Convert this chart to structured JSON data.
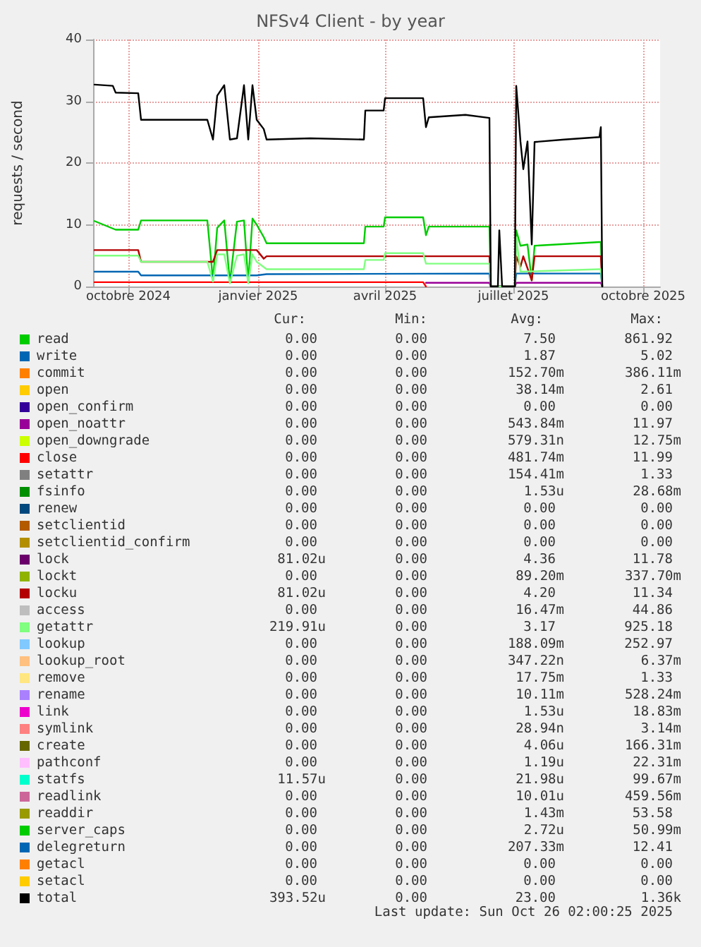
{
  "chart_data": {
    "type": "line",
    "title": "NFSv4 Client - by year",
    "ylabel": "requests / second",
    "xlim": [
      "2024-09-06",
      "2025-10-13"
    ],
    "xticks": [
      {
        "value": "2024-10-01",
        "label": "octobre 2024"
      },
      {
        "value": "2025-01-01",
        "label": "janvier 2025"
      },
      {
        "value": "2025-04-01",
        "label": "avril 2025"
      },
      {
        "value": "2025-07-01",
        "label": "juillet 2025"
      },
      {
        "value": "2025-10-01",
        "label": "octobre 2025"
      }
    ],
    "ylim": [
      0,
      40
    ],
    "yticks": [
      0,
      10,
      20,
      30,
      40
    ],
    "grid": true,
    "legend": "bottom",
    "marker": "none",
    "line_style": "solid",
    "series": [
      {
        "name": "read",
        "color": "#00cc00",
        "x": [
          "2024-09-07",
          "2024-09-22",
          "2024-10-08",
          "2024-10-10",
          "2024-11-26",
          "2024-11-30",
          "2024-12-03",
          "2024-12-08",
          "2024-12-12",
          "2024-12-17",
          "2024-12-22",
          "2024-12-25",
          "2024-12-28",
          "2024-12-31",
          "2025-01-05",
          "2025-01-07",
          "2025-03-17",
          "2025-03-18",
          "2025-03-31",
          "2025-04-01",
          "2025-04-28",
          "2025-04-30",
          "2025-05-02",
          "2025-06-14",
          "2025-06-15",
          "2025-07-02",
          "2025-07-03",
          "2025-07-06",
          "2025-07-11",
          "2025-07-14",
          "2025-07-16",
          "2025-08-31",
          "2025-09-01",
          "2025-09-02"
        ],
        "values": [
          10.6,
          9.2,
          9.2,
          10.7,
          10.7,
          1.0,
          9.5,
          10.7,
          0.7,
          10.5,
          10.7,
          0.7,
          11.0,
          10.0,
          8.0,
          7.0,
          7.0,
          9.7,
          9.7,
          11.2,
          11.2,
          8.3,
          9.7,
          9.7,
          0,
          0,
          9.1,
          6.6,
          6.8,
          1.0,
          6.6,
          7.2,
          7.2,
          0
        ]
      },
      {
        "name": "write",
        "color": "#0066b3",
        "x": [
          "2024-09-07",
          "2024-10-08",
          "2024-10-10",
          "2024-12-31",
          "2025-01-07",
          "2025-06-14",
          "2025-06-15",
          "2025-07-02",
          "2025-07-03",
          "2025-09-01",
          "2025-09-02"
        ],
        "values": [
          2.4,
          2.4,
          1.8,
          1.8,
          2.0,
          2.1,
          0,
          0,
          2.1,
          2.1,
          0
        ]
      },
      {
        "name": "commit",
        "color": "#ff8000"
      },
      {
        "name": "open",
        "color": "#ffcc00"
      },
      {
        "name": "open_confirm",
        "color": "#330099"
      },
      {
        "name": "open_noattr",
        "color": "#990099",
        "x": [
          "2025-04-30",
          "2025-06-14",
          "2025-06-15",
          "2025-07-02",
          "2025-07-03",
          "2025-09-01",
          "2025-09-02"
        ],
        "values": [
          0.6,
          0.6,
          0,
          0,
          0.6,
          0.6,
          0
        ]
      },
      {
        "name": "open_downgrade",
        "color": "#ccff00"
      },
      {
        "name": "close",
        "color": "#ff0000",
        "x": [
          "2024-09-07",
          "2025-04-28",
          "2025-04-30"
        ],
        "values": [
          0.7,
          0.7,
          0
        ]
      },
      {
        "name": "setattr",
        "color": "#808080"
      },
      {
        "name": "fsinfo",
        "color": "#008f00"
      },
      {
        "name": "renew",
        "color": "#00487d"
      },
      {
        "name": "setclientid",
        "color": "#b35a00"
      },
      {
        "name": "setclientid_confirm",
        "color": "#b38f00"
      },
      {
        "name": "lock",
        "color": "#6b006b"
      },
      {
        "name": "lockt",
        "color": "#8fb300"
      },
      {
        "name": "locku",
        "color": "#b30000",
        "x": [
          "2024-09-07",
          "2024-10-08",
          "2024-10-10",
          "2024-11-30",
          "2024-12-03",
          "2024-12-31",
          "2025-01-05",
          "2025-01-07",
          "2025-06-14",
          "2025-06-15",
          "2025-07-02",
          "2025-07-03",
          "2025-07-06",
          "2025-07-08",
          "2025-07-14",
          "2025-07-16",
          "2025-09-01",
          "2025-09-02"
        ],
        "values": [
          5.9,
          5.9,
          4.0,
          4.0,
          5.9,
          5.9,
          4.5,
          4.9,
          4.9,
          0,
          0,
          4.9,
          3.2,
          4.9,
          1.0,
          4.9,
          4.9,
          0
        ]
      },
      {
        "name": "access",
        "color": "#bebebe"
      },
      {
        "name": "getattr",
        "color": "#80ff80",
        "x": [
          "2024-09-07",
          "2024-10-08",
          "2024-10-10",
          "2024-11-26",
          "2024-11-30",
          "2024-12-03",
          "2024-12-08",
          "2024-12-12",
          "2024-12-17",
          "2024-12-22",
          "2024-12-25",
          "2024-12-28",
          "2024-12-31",
          "2025-01-07",
          "2025-03-17",
          "2025-03-18",
          "2025-03-31",
          "2025-04-01",
          "2025-04-28",
          "2025-04-30",
          "2025-06-14",
          "2025-06-15",
          "2025-07-02",
          "2025-07-03",
          "2025-07-06",
          "2025-08-31",
          "2025-09-01",
          "2025-09-02"
        ],
        "values": [
          5.0,
          5.0,
          4.0,
          4.0,
          0.8,
          5.2,
          5.2,
          0.5,
          5.0,
          5.2,
          0.5,
          5.2,
          4.0,
          2.8,
          2.8,
          4.3,
          4.3,
          5.4,
          5.4,
          3.7,
          3.7,
          0,
          0,
          8.0,
          2.4,
          2.8,
          2.8,
          0
        ]
      },
      {
        "name": "lookup",
        "color": "#80c9ff"
      },
      {
        "name": "lookup_root",
        "color": "#ffc080"
      },
      {
        "name": "remove",
        "color": "#ffe680"
      },
      {
        "name": "rename",
        "color": "#aa80ff"
      },
      {
        "name": "link",
        "color": "#ee00cc"
      },
      {
        "name": "symlink",
        "color": "#ff8080"
      },
      {
        "name": "create",
        "color": "#666600"
      },
      {
        "name": "pathconf",
        "color": "#ffbfff"
      },
      {
        "name": "statfs",
        "color": "#00ffcc"
      },
      {
        "name": "readlink",
        "color": "#cc6699"
      },
      {
        "name": "readdir",
        "color": "#999900"
      },
      {
        "name": "server_caps",
        "color": "#00cc00"
      },
      {
        "name": "delegreturn",
        "color": "#0066b3"
      },
      {
        "name": "getacl",
        "color": "#ff8000"
      },
      {
        "name": "setacl",
        "color": "#ffcc00"
      },
      {
        "name": "total",
        "color": "#000000",
        "x": [
          "2024-09-07",
          "2024-09-20",
          "2024-09-22",
          "2024-10-08",
          "2024-10-10",
          "2024-11-26",
          "2024-11-30",
          "2024-12-03",
          "2024-12-08",
          "2024-12-12",
          "2024-12-17",
          "2024-12-22",
          "2024-12-25",
          "2024-12-28",
          "2024-12-31",
          "2025-01-05",
          "2025-01-07",
          "2025-02-07",
          "2025-03-17",
          "2025-03-18",
          "2025-03-31",
          "2025-04-01",
          "2025-04-28",
          "2025-04-30",
          "2025-05-02",
          "2025-05-28",
          "2025-06-14",
          "2025-06-15",
          "2025-06-20",
          "2025-06-21",
          "2025-06-23",
          "2025-07-02",
          "2025-07-03",
          "2025-07-06",
          "2025-07-08",
          "2025-07-11",
          "2025-07-14",
          "2025-07-16",
          "2025-08-06",
          "2025-08-31",
          "2025-09-01",
          "2025-09-02"
        ],
        "values": [
          32.7,
          32.5,
          31.4,
          31.3,
          27.0,
          27.0,
          23.8,
          30.9,
          32.6,
          23.8,
          24.0,
          32.6,
          23.8,
          32.6,
          27.0,
          25.5,
          23.8,
          24.0,
          23.8,
          28.5,
          28.5,
          30.5,
          30.5,
          25.8,
          27.4,
          27.8,
          27.3,
          0,
          0,
          9.1,
          0,
          0,
          32.5,
          23.5,
          19,
          23.5,
          6.8,
          23.4,
          23.8,
          24.2,
          25.8,
          0
        ]
      }
    ],
    "annotations": [
      "Cur:",
      "Min:",
      "Avg:",
      "Max:",
      "0.00",
      "0.00",
      "7.50",
      "861.92",
      "0.00",
      "0.00",
      "1.87",
      "5.02",
      "0.00",
      "0.00",
      "152.70m",
      "386.11m",
      "0.00",
      "0.00",
      "38.14m",
      "2.61",
      "0.00",
      "0.00",
      "0.00",
      "0.00",
      "0.00",
      "0.00",
      "543.84m",
      "11.97",
      "0.00",
      "0.00",
      "579.31n",
      "12.75m",
      "0.00",
      "0.00",
      "481.74m",
      "11.99",
      "0.00",
      "0.00",
      "154.41m",
      "1.33",
      "0.00",
      "0.00",
      "1.53u",
      "28.68m",
      "0.00",
      "0.00",
      "0.00",
      "0.00",
      "0.00",
      "0.00",
      "0.00",
      "0.00",
      "0.00",
      "0.00",
      "0.00",
      "0.00",
      "81.02u",
      "0.00",
      "4.36",
      "11.78",
      "0.00",
      "0.00",
      "89.20m",
      "337.70m",
      "81.02u",
      "0.00",
      "4.20",
      "11.34",
      "0.00",
      "0.00",
      "16.47m",
      "44.86",
      "219.91u",
      "0.00",
      "3.17",
      "925.18",
      "0.00",
      "0.00",
      "188.09m",
      "252.97",
      "0.00",
      "0.00",
      "347.22n",
      "6.37m",
      "0.00",
      "0.00",
      "17.75m",
      "1.33",
      "0.00",
      "0.00",
      "10.11m",
      "528.24m",
      "0.00",
      "0.00",
      "1.53u",
      "18.83m",
      "0.00",
      "0.00",
      "28.94n",
      "3.14m",
      "0.00",
      "0.00",
      "4.06u",
      "166.31m",
      "0.00",
      "0.00",
      "1.19u",
      "22.31m",
      "11.57u",
      "0.00",
      "21.98u",
      "99.67m",
      "0.00",
      "0.00",
      "10.01u",
      "459.56m",
      "0.00",
      "0.00",
      "1.43m",
      "53.58",
      "0.00",
      "0.00",
      "2.72u",
      "50.99m",
      "0.00",
      "0.00",
      "207.33m",
      "12.41",
      "0.00",
      "0.00",
      "0.00",
      "0.00",
      "0.00",
      "0.00",
      "0.00",
      "0.00",
      "393.52u",
      "0.00",
      "23.00",
      "1.36k",
      "Last update: Sun Oct 26 02:00:25 2025"
    ]
  }
}
